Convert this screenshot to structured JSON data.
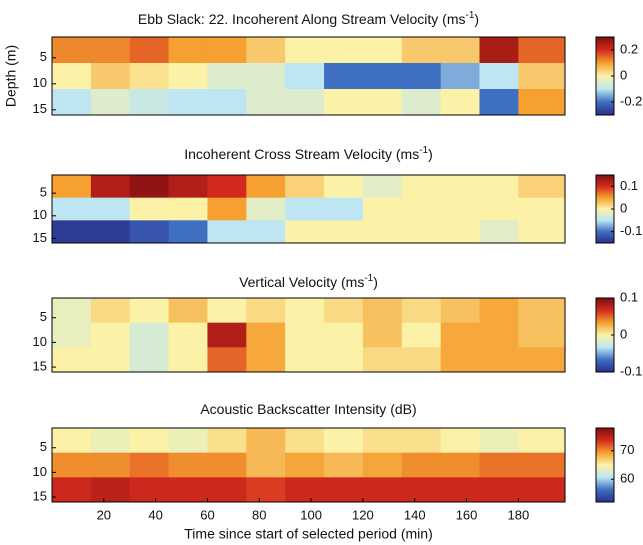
{
  "chart_data": [
    {
      "type": "heatmap",
      "title": {
        "text": "Ebb Slack: 22. Incoherent Along Stream Velocity (ms",
        "sup": "-1",
        "end": ")"
      },
      "ylabel": "Depth (m)",
      "xlim": [
        0,
        198
      ],
      "ylim": [
        1,
        16
      ],
      "yticks": [
        5,
        10,
        15
      ],
      "x_edges": [
        0,
        15,
        30,
        45,
        60,
        75,
        90,
        105,
        120,
        135,
        150,
        165,
        180,
        198
      ],
      "y_edges": [
        1,
        6,
        11,
        16
      ],
      "z": [
        [
          0.12,
          0.12,
          0.15,
          0.1,
          0.1,
          0.05,
          0,
          0,
          0,
          0.05,
          0.05,
          0.25,
          0.15
        ],
        [
          0,
          0.05,
          0.02,
          0,
          -0.05,
          -0.05,
          -0.1,
          -0.2,
          -0.2,
          -0.2,
          -0.15,
          -0.1,
          0.05
        ],
        [
          -0.1,
          -0.05,
          -0.08,
          -0.1,
          -0.1,
          -0.05,
          -0.05,
          0,
          0,
          -0.05,
          0,
          -0.2,
          0.1
        ]
      ],
      "clim": [
        -0.3,
        0.3
      ],
      "cticks": [
        0.2,
        0,
        -0.2
      ],
      "colormap": [
        "#2b2f8c",
        "#3f6fc0",
        "#bde6f2",
        "#fbf2a8",
        "#f5a030",
        "#d42a1e",
        "#7e0f10"
      ]
    },
    {
      "type": "heatmap",
      "title": {
        "text": "Incoherent Cross Stream Velocity (ms",
        "sup": "-1",
        "end": ")"
      },
      "xlim": [
        0,
        198
      ],
      "ylim": [
        1,
        16
      ],
      "yticks": [
        5,
        10,
        15
      ],
      "x_edges": [
        0,
        15,
        30,
        45,
        60,
        75,
        90,
        105,
        120,
        135,
        150,
        165,
        180,
        198
      ],
      "y_edges": [
        1,
        6,
        11,
        16
      ],
      "z": [
        [
          0.05,
          0.12,
          0.14,
          0.12,
          0.1,
          0.05,
          0.02,
          0,
          -0.02,
          0,
          0,
          0,
          0.02
        ],
        [
          -0.05,
          -0.05,
          0,
          0,
          0.05,
          -0.02,
          -0.05,
          -0.05,
          0,
          0,
          0,
          0,
          0
        ],
        [
          -0.14,
          -0.14,
          -0.12,
          -0.1,
          -0.05,
          -0.05,
          0,
          0,
          0,
          0,
          0,
          -0.02,
          0
        ]
      ],
      "clim": [
        -0.15,
        0.15
      ],
      "cticks": [
        0.1,
        0,
        -0.1
      ],
      "colormap": [
        "#2b2f8c",
        "#3f6fc0",
        "#bde6f2",
        "#fbf2a8",
        "#f5a030",
        "#d42a1e",
        "#7e0f10"
      ]
    },
    {
      "type": "heatmap",
      "title": {
        "text": "Vertical Velocity (ms",
        "sup": "-1",
        "end": ")"
      },
      "xlim": [
        0,
        198
      ],
      "ylim": [
        1,
        16
      ],
      "yticks": [
        5,
        10,
        15
      ],
      "x_edges": [
        0,
        15,
        30,
        45,
        60,
        75,
        90,
        105,
        120,
        135,
        150,
        165,
        180,
        198
      ],
      "y_edges": [
        1,
        6,
        11,
        16
      ],
      "z": [
        [
          -0.01,
          0.01,
          0,
          0.02,
          0,
          0.01,
          0,
          0.01,
          0.02,
          0.01,
          0.02,
          0.03,
          0.02
        ],
        [
          -0.01,
          0,
          -0.02,
          0,
          0.08,
          0.03,
          0,
          0,
          0.02,
          0,
          0.03,
          0.03,
          0.02
        ],
        [
          0,
          0,
          -0.02,
          0,
          0.05,
          0.03,
          0,
          0,
          0.01,
          0.01,
          0.03,
          0.03,
          0.03
        ]
      ],
      "clim": [
        -0.1,
        0.1
      ],
      "cticks": [
        0.1,
        0,
        -0.1
      ],
      "colormap": [
        "#2b2f8c",
        "#3f6fc0",
        "#bde6f2",
        "#fbf2a8",
        "#f5a030",
        "#d42a1e",
        "#7e0f10"
      ]
    },
    {
      "type": "heatmap",
      "title": {
        "text": "Acoustic Backscatter Intensity (dB)"
      },
      "xlabel": "Time since start of selected period (min)",
      "xlim": [
        0,
        198
      ],
      "xticks": [
        20,
        40,
        60,
        80,
        100,
        120,
        140,
        160,
        180
      ],
      "ylim": [
        1,
        16
      ],
      "yticks": [
        5,
        10,
        15
      ],
      "x_edges": [
        0,
        15,
        30,
        45,
        60,
        75,
        90,
        105,
        120,
        135,
        150,
        165,
        180,
        198
      ],
      "y_edges": [
        1,
        6,
        11,
        16
      ],
      "z": [
        [
          65,
          64,
          65,
          64,
          66,
          68,
          66,
          65,
          66,
          66,
          65,
          64,
          65
        ],
        [
          70,
          70,
          71,
          70,
          70,
          68,
          69,
          68,
          69,
          70,
          70,
          71,
          71
        ],
        [
          74,
          75,
          74,
          74,
          74,
          73,
          74,
          74,
          74,
          74,
          74,
          74,
          74
        ]
      ],
      "clim": [
        52,
        78
      ],
      "cticks": [
        70,
        60
      ],
      "colormap": [
        "#2b2f8c",
        "#3f6fc0",
        "#bde6f2",
        "#fbf2a8",
        "#f5a030",
        "#d42a1e",
        "#7e0f10"
      ]
    }
  ]
}
